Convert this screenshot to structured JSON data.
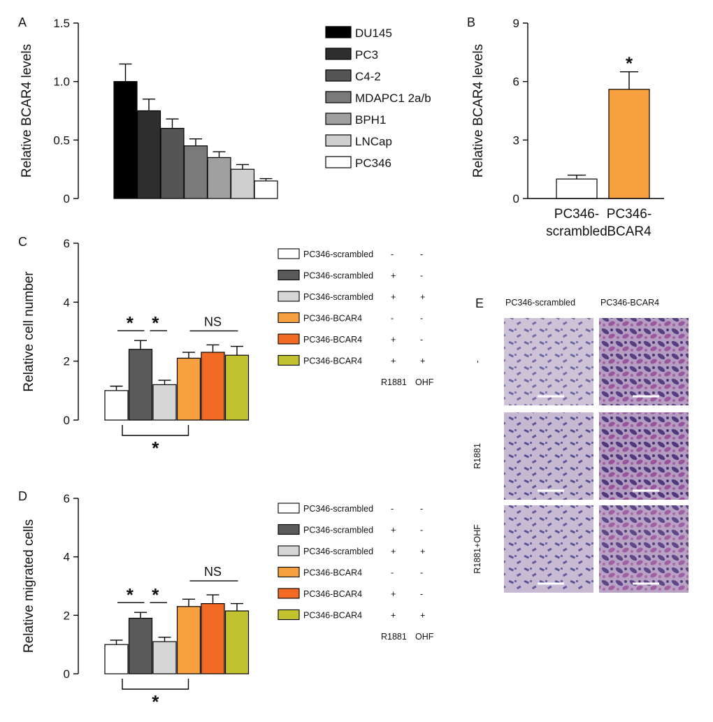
{
  "panels": {
    "a": "A",
    "b": "B",
    "c": "C",
    "d": "D",
    "e": "E"
  },
  "chart_data": [
    {
      "panel": "A",
      "type": "bar",
      "ylabel": "Relative BCAR4 levels",
      "ylim": [
        0,
        1.5
      ],
      "yticks": [
        0,
        0.5,
        1.0,
        1.5
      ],
      "ytick_labels": [
        "0",
        "0.5",
        "1.0",
        "1.5"
      ],
      "categories": [
        "DU145",
        "PC3",
        "C4-2",
        "MDAPC1 2a/b",
        "BPH1",
        "LNCap",
        "PC346"
      ],
      "values": [
        1.0,
        0.75,
        0.6,
        0.45,
        0.35,
        0.25,
        0.15
      ],
      "errors": [
        0.15,
        0.1,
        0.08,
        0.06,
        0.05,
        0.04,
        0.02
      ],
      "colors": [
        "#000000",
        "#2e2e2e",
        "#555555",
        "#7a7a7a",
        "#a0a0a0",
        "#cfcfcf",
        "#ffffff"
      ]
    },
    {
      "panel": "B",
      "type": "bar",
      "ylabel": "Relative BCAR4 levels",
      "ylim": [
        0,
        9
      ],
      "yticks": [
        0,
        3,
        6,
        9
      ],
      "ytick_labels": [
        "0",
        "3",
        "6",
        "9"
      ],
      "categories": [
        [
          "PC346-",
          "scrambled"
        ],
        [
          "PC346-",
          "BCAR4"
        ]
      ],
      "values": [
        1.0,
        5.6
      ],
      "errors": [
        0.2,
        0.9
      ],
      "colors": [
        "#ffffff",
        "#f7a040"
      ],
      "annotation": "*"
    },
    {
      "panel": "C",
      "type": "bar",
      "ylabel": "Relative cell number",
      "ylim": [
        0,
        6
      ],
      "yticks": [
        0,
        2,
        4,
        6
      ],
      "ytick_labels": [
        "0",
        "2",
        "4",
        "6"
      ],
      "values": [
        1.0,
        2.4,
        1.2,
        2.1,
        2.3,
        2.2
      ],
      "errors": [
        0.15,
        0.3,
        0.15,
        0.2,
        0.25,
        0.3
      ],
      "colors": [
        "#ffffff",
        "#5a5a5a",
        "#d6d6d6",
        "#f7a040",
        "#f26a24",
        "#c2c22f"
      ],
      "significance": {
        "star": "*",
        "ns": "NS"
      },
      "legend": [
        {
          "label": "PC346-scrambled",
          "r1881": "-",
          "ohf": "-"
        },
        {
          "label": "PC346-scrambled",
          "r1881": "+",
          "ohf": "-"
        },
        {
          "label": "PC346-scrambled",
          "r1881": "+",
          "ohf": "+"
        },
        {
          "label": "PC346-BCAR4",
          "r1881": "-",
          "ohf": "-"
        },
        {
          "label": "PC346-BCAR4",
          "r1881": "+",
          "ohf": "-"
        },
        {
          "label": "PC346-BCAR4",
          "r1881": "+",
          "ohf": "+"
        }
      ],
      "legend_columns": [
        "R1881",
        "OHF"
      ]
    },
    {
      "panel": "D",
      "type": "bar",
      "ylabel": "Relative migrated cells",
      "ylim": [
        0,
        6
      ],
      "yticks": [
        0,
        2,
        4,
        6
      ],
      "ytick_labels": [
        "0",
        "2",
        "4",
        "6"
      ],
      "values": [
        1.0,
        1.9,
        1.1,
        2.3,
        2.4,
        2.15
      ],
      "errors": [
        0.15,
        0.2,
        0.15,
        0.25,
        0.3,
        0.25
      ],
      "colors": [
        "#ffffff",
        "#5a5a5a",
        "#d6d6d6",
        "#f7a040",
        "#f26a24",
        "#c2c22f"
      ],
      "significance": {
        "star": "*",
        "ns": "NS"
      },
      "legend": [
        {
          "label": "PC346-scrambled",
          "r1881": "-",
          "ohf": "-"
        },
        {
          "label": "PC346-scrambled",
          "r1881": "+",
          "ohf": "-"
        },
        {
          "label": "PC346-scrambled",
          "r1881": "+",
          "ohf": "+"
        },
        {
          "label": "PC346-BCAR4",
          "r1881": "-",
          "ohf": "-"
        },
        {
          "label": "PC346-BCAR4",
          "r1881": "+",
          "ohf": "-"
        },
        {
          "label": "PC346-BCAR4",
          "r1881": "+",
          "ohf": "+"
        }
      ],
      "legend_columns": [
        "R1881",
        "OHF"
      ]
    }
  ],
  "panel_e": {
    "columns": [
      "PC346-scrambled",
      "PC346-BCAR4"
    ],
    "rows": [
      "-",
      "R1881",
      "R1881+OHF"
    ],
    "density": [
      [
        0.35,
        0.7
      ],
      [
        0.6,
        0.75
      ],
      [
        0.55,
        0.6
      ]
    ]
  }
}
